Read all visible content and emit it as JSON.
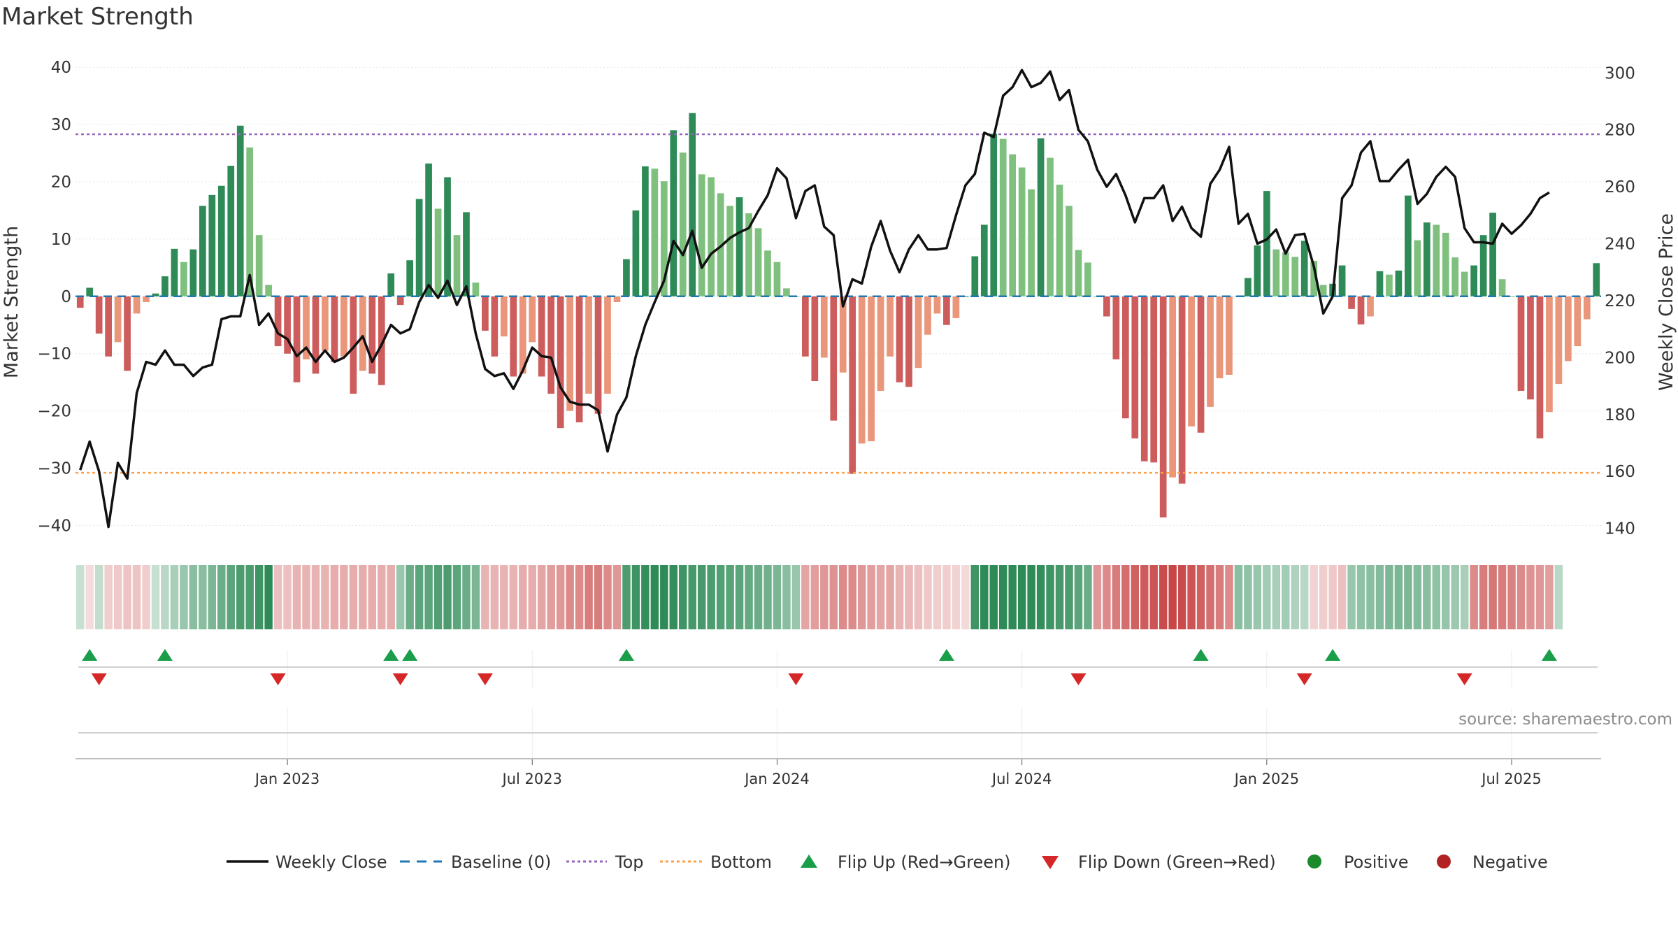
{
  "chart_data": {
    "type": "bar",
    "title": "Market Strength",
    "ylabel": "Market Strength",
    "y2label": "Weekly Close Price",
    "ylim": [
      -43,
      41
    ],
    "y2lim": [
      135,
      304
    ],
    "yticks": [
      40,
      30,
      20,
      10,
      0,
      -10,
      -20,
      -30,
      -40
    ],
    "ytick_labels": [
      "40",
      "30",
      "20",
      "10",
      "0",
      "−10",
      "−20",
      "−30",
      "−40"
    ],
    "y2ticks": [
      300,
      280,
      260,
      240,
      220,
      200,
      180,
      160,
      140
    ],
    "xtick_labels": [
      "Jan 2023",
      "Jul 2023",
      "Jan 2024",
      "Jul 2024",
      "Jan 2025",
      "Jul 2025"
    ],
    "xtick_weeks": [
      22,
      48,
      74,
      100,
      126,
      152
    ],
    "top_level": 28.3,
    "bottom_level": -30.8,
    "baseline": 0,
    "source": "source: sharemaestro.com",
    "colors": {
      "strong_pos": "#2e8b57",
      "weak_pos": "#7fc07f",
      "strong_neg": "#cd5c5c",
      "weak_neg": "#e9967a",
      "price": "#111111",
      "baseline": "#1f77b4",
      "top": "#9467bd",
      "bottom": "#ff9f4a",
      "flip_up": "#1a9e4a",
      "flip_down": "#d62728",
      "positive": "#1a8a2a",
      "negative": "#b22222"
    },
    "strength": [
      -2,
      1.5,
      -6.5,
      -10.5,
      -8,
      -13,
      -3,
      -1,
      0.5,
      3.5,
      8.3,
      6,
      8.2,
      15.8,
      17.7,
      19.3,
      22.8,
      29.8,
      26,
      10.7,
      2,
      -8.7,
      -10,
      -15,
      -11,
      -13.5,
      -9.5,
      -11.5,
      -10.5,
      -17,
      -13,
      -13.5,
      -15.5,
      4,
      -1.5,
      6.3,
      17,
      23.2,
      15.3,
      20.8,
      10.7,
      14.7,
      2.4,
      -6,
      -10.5,
      -7,
      -14,
      -13.5,
      -8,
      -14,
      -17,
      -23,
      -20,
      -22,
      -17,
      -20.5,
      -17,
      -1,
      6.5,
      15,
      22.7,
      22.3,
      20.1,
      29,
      25.1,
      32,
      21.3,
      20.8,
      18,
      15.8,
      17.3,
      14.5,
      11.9,
      8,
      6,
      1.4,
      0,
      -10.5,
      -14.8,
      -10.7,
      -21.7,
      -13.3,
      -31,
      -25.7,
      -25.3,
      -16.5,
      -10.5,
      -15,
      -15.8,
      -12.5,
      -6.7,
      -3,
      -5,
      -3.8,
      0,
      7,
      12.5,
      28.4,
      27.5,
      24.8,
      22.5,
      18.7,
      27.6,
      24.2,
      19.5,
      15.8,
      8.1,
      5.9,
      0,
      -3.5,
      -11,
      -21.3,
      -24.8,
      -28.8,
      -29,
      -38.6,
      -31.6,
      -32.7,
      -22.7,
      -23.8,
      -19.3,
      -14.3,
      -13.7,
      0,
      3.2,
      8.9,
      18.4,
      8.2,
      7.7,
      6.9,
      9.7,
      6.2,
      2,
      2.2,
      5.4,
      -2.2,
      -4.9,
      -3.5,
      4.4,
      3.8,
      4.5,
      17.6,
      9.8,
      12.9,
      12.5,
      11.1,
      6.8,
      4.3,
      5.4,
      10.7,
      14.6,
      3,
      0,
      -16.5,
      -18,
      -24.8,
      -20.2,
      -15.3,
      -11.3,
      -8.7,
      -4,
      5.8
    ],
    "price": [
      160.5,
      170.5,
      160,
      140.5,
      163,
      157.5,
      187.5,
      198.5,
      197.5,
      202.5,
      197.5,
      197.5,
      193.5,
      196.5,
      197.5,
      213.5,
      214.5,
      214.5,
      229,
      211.5,
      215.5,
      208.5,
      206.5,
      200.5,
      203.5,
      198.5,
      202.5,
      198.5,
      200,
      203.5,
      207.5,
      198.5,
      204.5,
      211.5,
      208.5,
      210,
      219.5,
      225.5,
      221,
      227,
      218.5,
      225,
      208.5,
      196,
      193.5,
      194.5,
      189,
      195.5,
      203.5,
      200.5,
      200,
      189.5,
      184.5,
      183.5,
      183.5,
      181.5,
      167,
      180,
      186,
      200.5,
      211.5,
      219.5,
      227,
      241,
      236,
      244.5,
      231.5,
      236.5,
      239,
      242,
      244,
      245.5,
      251.5,
      257,
      266.5,
      263,
      249,
      258.5,
      260.5,
      246,
      243,
      218,
      227.5,
      226,
      239,
      248,
      237.5,
      230,
      238,
      243,
      238,
      238,
      238.5,
      250,
      260.5,
      264.5,
      279,
      277.5,
      292,
      295,
      301,
      295,
      296.5,
      300.5,
      290.5,
      294,
      280,
      276,
      266,
      260,
      264.5,
      257,
      247.5,
      256,
      256,
      260.5,
      248,
      253,
      245.5,
      242.5,
      261,
      266,
      274,
      247,
      250.5,
      240,
      241.5,
      245,
      236.5,
      243,
      243.5,
      232,
      215.5,
      221.5,
      256,
      260.5,
      272,
      276,
      262,
      262,
      266,
      269.5,
      254,
      257.5,
      263.5,
      267,
      263.5,
      245.5,
      240.5,
      240.5,
      240,
      247,
      243.5,
      246.5,
      250.5,
      256,
      258
    ],
    "flip_up_weeks": [
      1,
      9,
      33,
      35,
      58,
      92,
      119,
      133,
      156
    ],
    "flip_down_weeks": [
      2,
      21,
      34,
      43,
      76,
      106,
      130,
      147
    ],
    "strip_values": [
      10,
      -5,
      12,
      -10,
      -12,
      -14,
      -14,
      -10,
      10,
      15,
      20,
      25,
      30,
      30,
      35,
      40,
      45,
      50,
      50,
      55,
      60,
      -15,
      -15,
      -20,
      -20,
      -20,
      -20,
      -22,
      -22,
      -22,
      -22,
      -22,
      -22,
      -22,
      25,
      40,
      45,
      45,
      48,
      50,
      45,
      40,
      35,
      -20,
      -20,
      -20,
      -20,
      -22,
      -22,
      -25,
      -28,
      -30,
      -35,
      -35,
      -40,
      -40,
      -35,
      -30,
      50,
      55,
      58,
      60,
      60,
      58,
      55,
      52,
      52,
      50,
      48,
      46,
      45,
      42,
      40,
      38,
      35,
      30,
      25,
      -25,
      -28,
      -30,
      -32,
      -35,
      -35,
      -30,
      -28,
      -25,
      -25,
      -20,
      -18,
      -15,
      -12,
      -10,
      -10,
      -8,
      -6,
      55,
      60,
      65,
      68,
      68,
      66,
      62,
      58,
      55,
      52,
      50,
      45,
      40,
      -30,
      -35,
      -40,
      -45,
      -50,
      -52,
      -55,
      -58,
      -60,
      -58,
      -55,
      -50,
      -45,
      -40,
      -35,
      30,
      28,
      25,
      22,
      20,
      22,
      18,
      15,
      -8,
      -10,
      -12,
      -15,
      25,
      28,
      30,
      32,
      34,
      35,
      34,
      32,
      30,
      28,
      26,
      24,
      20,
      -35,
      -40,
      -42,
      -40,
      -38,
      -35,
      -32,
      -30,
      -28,
      15
    ]
  },
  "legend": {
    "weekly_close": "Weekly Close",
    "baseline": "Baseline (0)",
    "top": "Top",
    "bottom": "Bottom",
    "flip_up": "Flip Up (Red→Green)",
    "flip_down": "Flip Down (Green→Red)",
    "positive": "Positive",
    "negative": "Negative"
  }
}
